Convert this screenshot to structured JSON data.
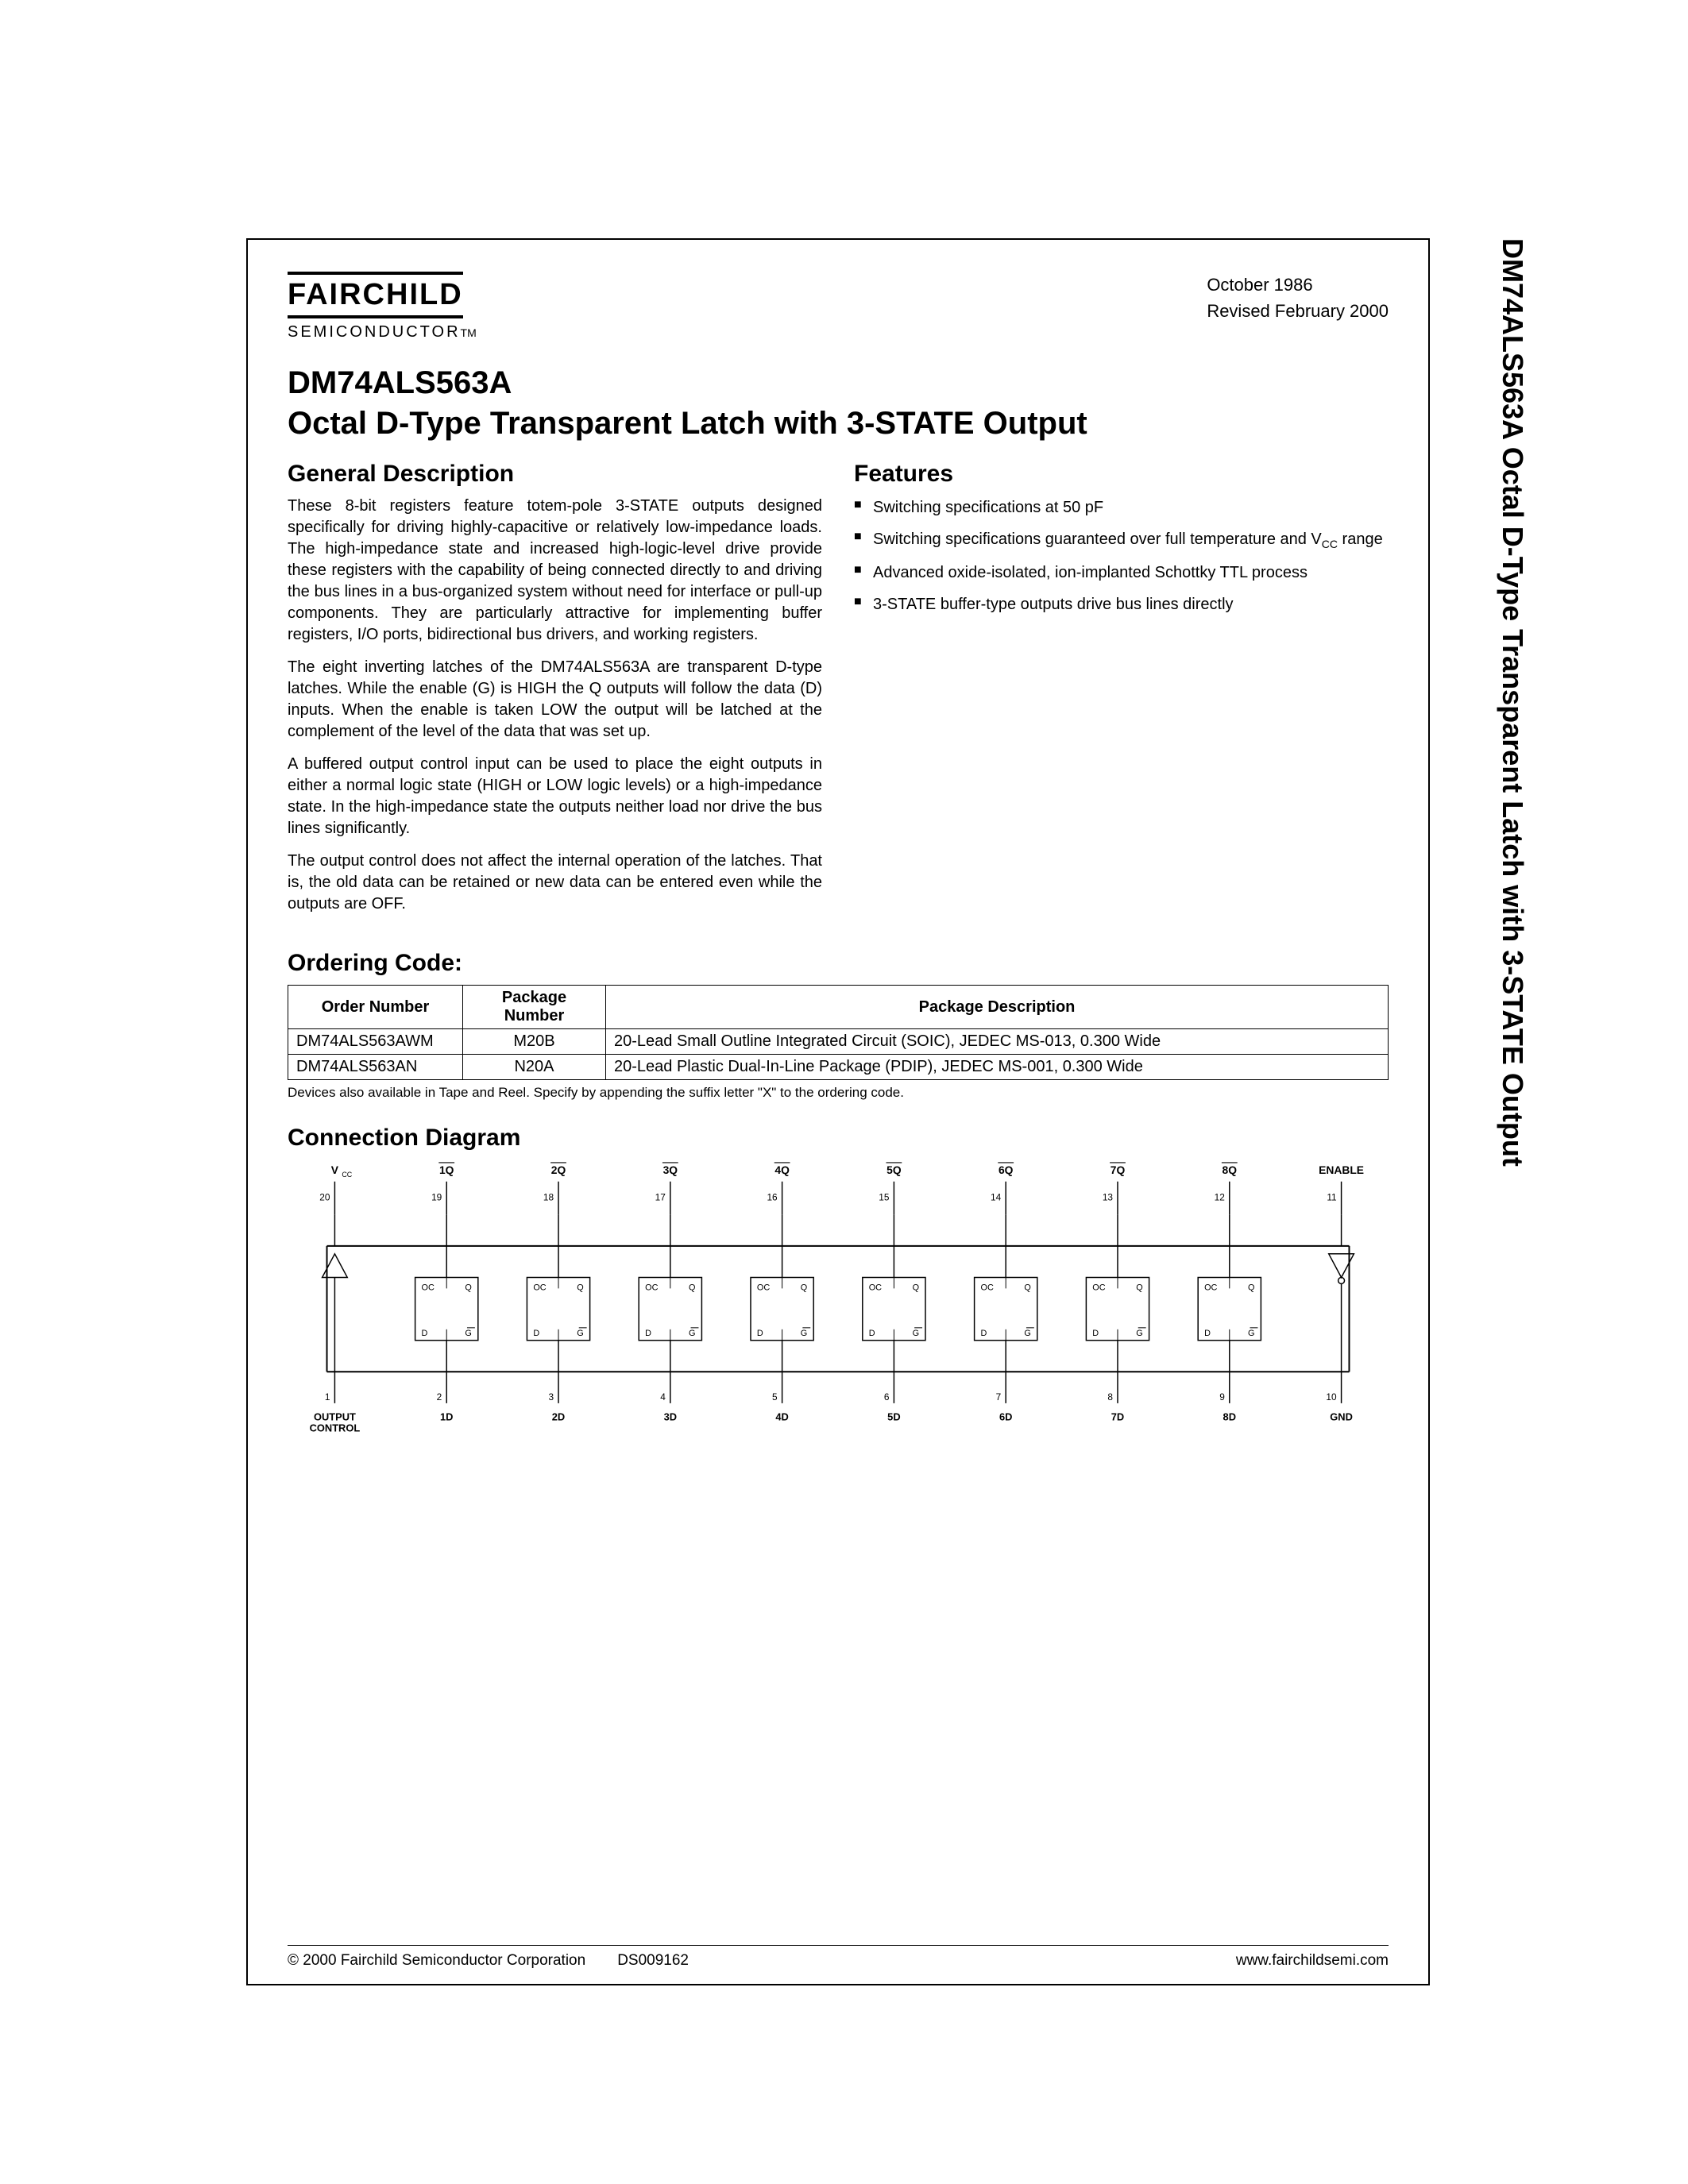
{
  "logo": {
    "name": "FAIRCHILD",
    "sub": "SEMICONDUCTOR",
    "tm": "TM"
  },
  "dates": {
    "line1": "October 1986",
    "line2": "Revised February 2000"
  },
  "partNumber": "DM74ALS563A",
  "title": "Octal D-Type Transparent Latch with 3-STATE Output",
  "sideTitle": "DM74ALS563A Octal D-Type Transparent Latch with 3-STATE Output",
  "sections": {
    "genDesc": {
      "head": "General Description",
      "p1": "These 8-bit registers feature totem-pole 3-STATE outputs designed specifically for driving highly-capacitive or relatively low-impedance loads. The high-impedance state and increased high-logic-level drive provide these registers with the capability of being connected directly to and driving the bus lines in a bus-organized system without need for interface or pull-up components. They are particularly attractive for implementing buffer registers, I/O ports, bidirectional bus drivers, and working registers.",
      "p2": "The eight inverting latches of the DM74ALS563A are transparent D-type latches. While the enable (G) is HIGH the Q outputs will follow the data (D) inputs. When the enable is taken LOW the output will be latched at the complement of the level of the data that was set up.",
      "p3": "A buffered output control input can be used to place the eight outputs in either a normal logic state (HIGH or LOW logic levels) or a high-impedance state. In the high-impedance state the outputs neither load nor drive the bus lines significantly.",
      "p4": "The output control does not affect the internal operation of the latches. That is, the old data can be retained or new data can be entered even while the outputs are OFF."
    },
    "features": {
      "head": "Features",
      "items": [
        "Switching specifications at 50 pF",
        "Switching specifications guaranteed over full temperature and V__CC__ range",
        "Advanced oxide-isolated, ion-implanted Schottky TTL process",
        "3-STATE buffer-type outputs drive bus lines directly"
      ]
    },
    "ordering": {
      "head": "Ordering Code:",
      "cols": [
        "Order Number",
        "Package Number",
        "Package Description"
      ],
      "rows": [
        [
          "DM74ALS563AWM",
          "M20B",
          "20-Lead Small Outline Integrated Circuit (SOIC), JEDEC MS-013, 0.300 Wide"
        ],
        [
          "DM74ALS563AN",
          "N20A",
          "20-Lead Plastic Dual-In-Line Package (PDIP), JEDEC MS-001, 0.300 Wide"
        ]
      ],
      "note": "Devices also available in Tape and Reel. Specify by appending the suffix letter \"X\" to the ordering code."
    },
    "conn": {
      "head": "Connection Diagram"
    }
  },
  "diagram": {
    "topLabels": [
      "V_CC",
      "1Q̄",
      "2Q̄",
      "3Q̄",
      "4Q̄",
      "5Q̄",
      "6Q̄",
      "7Q̄",
      "8Q̄",
      "ENABLE"
    ],
    "topPins": [
      "20",
      "19",
      "18",
      "17",
      "16",
      "15",
      "14",
      "13",
      "12",
      "11"
    ],
    "botPins": [
      "1",
      "2",
      "3",
      "4",
      "5",
      "6",
      "7",
      "8",
      "9",
      "10"
    ],
    "botLabels": [
      "OUTPUT\nCONTROL",
      "1D",
      "2D",
      "3D",
      "4D",
      "5D",
      "6D",
      "7D",
      "8D",
      "GND"
    ],
    "latchTop": [
      "OC",
      "Q"
    ],
    "latchBot": [
      "D",
      "G"
    ]
  },
  "footer": {
    "copyright": "© 2000 Fairchild Semiconductor Corporation",
    "doc": "DS009162",
    "url": "www.fairchildsemi.com"
  }
}
